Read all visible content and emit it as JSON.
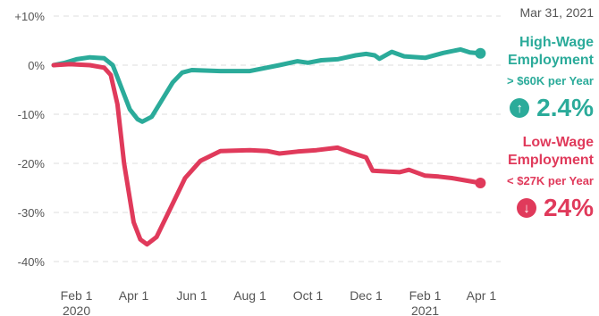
{
  "date_label": "Mar 31, 2021",
  "colors": {
    "high": "#2bab9a",
    "low": "#e03a5b",
    "grid": "#dddddd",
    "tick": "#555555"
  },
  "high_wage": {
    "title_line1": "High-Wage",
    "title_line2": "Employment",
    "subtitle": "> $60K per Year",
    "change": "2.4%",
    "icon": "arrow-up-icon"
  },
  "low_wage": {
    "title_line1": "Low-Wage",
    "title_line2": "Employment",
    "subtitle": "< $27K per Year",
    "change": "24%",
    "icon": "arrow-down-icon"
  },
  "chart_data": {
    "type": "line",
    "title": "",
    "xlabel": "",
    "ylabel": "",
    "ylim": [
      -40,
      10
    ],
    "yticks": [
      10,
      0,
      -10,
      -20,
      -30,
      -40
    ],
    "ytick_labels": [
      "+10%",
      "0%",
      "-10%",
      "-20%",
      "-30%",
      "-40%"
    ],
    "x_range": [
      "2020-01-08",
      "2021-04-10"
    ],
    "xticks": [
      {
        "date": "2020-02-01",
        "label": "Feb 1",
        "sub": "2020"
      },
      {
        "date": "2020-04-01",
        "label": "Apr 1",
        "sub": ""
      },
      {
        "date": "2020-06-01",
        "label": "Jun 1",
        "sub": ""
      },
      {
        "date": "2020-08-01",
        "label": "Aug 1",
        "sub": ""
      },
      {
        "date": "2020-10-01",
        "label": "Oct 1",
        "sub": ""
      },
      {
        "date": "2020-12-01",
        "label": "Dec 1",
        "sub": ""
      },
      {
        "date": "2021-02-01",
        "label": "Feb 1",
        "sub": "2021"
      },
      {
        "date": "2021-04-01",
        "label": "Apr 1",
        "sub": ""
      }
    ],
    "grid": true,
    "series": [
      {
        "key": "high",
        "points": [
          [
            "2020-01-08",
            0
          ],
          [
            "2020-01-20",
            0.5
          ],
          [
            "2020-02-01",
            1.2
          ],
          [
            "2020-02-15",
            1.6
          ],
          [
            "2020-03-01",
            1.4
          ],
          [
            "2020-03-10",
            0
          ],
          [
            "2020-03-20",
            -5
          ],
          [
            "2020-03-28",
            -9
          ],
          [
            "2020-04-05",
            -11
          ],
          [
            "2020-04-10",
            -11.5
          ],
          [
            "2020-04-20",
            -10.5
          ],
          [
            "2020-05-01",
            -7
          ],
          [
            "2020-05-12",
            -3.5
          ],
          [
            "2020-05-22",
            -1.5
          ],
          [
            "2020-06-01",
            -1
          ],
          [
            "2020-07-01",
            -1.2
          ],
          [
            "2020-08-01",
            -1.2
          ],
          [
            "2020-09-01",
            0
          ],
          [
            "2020-09-20",
            0.8
          ],
          [
            "2020-10-01",
            0.5
          ],
          [
            "2020-10-15",
            1
          ],
          [
            "2020-11-01",
            1.2
          ],
          [
            "2020-11-20",
            2
          ],
          [
            "2020-12-01",
            2.3
          ],
          [
            "2020-12-10",
            2
          ],
          [
            "2020-12-15",
            1.3
          ],
          [
            "2020-12-28",
            2.7
          ],
          [
            "2021-01-10",
            1.8
          ],
          [
            "2021-02-01",
            1.5
          ],
          [
            "2021-02-20",
            2.5
          ],
          [
            "2021-03-10",
            3.2
          ],
          [
            "2021-03-20",
            2.6
          ],
          [
            "2021-03-31",
            2.4
          ]
        ]
      },
      {
        "key": "low",
        "points": [
          [
            "2020-01-08",
            0
          ],
          [
            "2020-01-25",
            0.2
          ],
          [
            "2020-02-15",
            0
          ],
          [
            "2020-03-01",
            -0.5
          ],
          [
            "2020-03-08",
            -2
          ],
          [
            "2020-03-15",
            -8
          ],
          [
            "2020-03-22",
            -20
          ],
          [
            "2020-04-01",
            -32
          ],
          [
            "2020-04-08",
            -35.5
          ],
          [
            "2020-04-15",
            -36.5
          ],
          [
            "2020-04-25",
            -35
          ],
          [
            "2020-05-10",
            -29
          ],
          [
            "2020-05-25",
            -23
          ],
          [
            "2020-06-10",
            -19.5
          ],
          [
            "2020-07-01",
            -17.5
          ],
          [
            "2020-08-01",
            -17.3
          ],
          [
            "2020-08-20",
            -17.5
          ],
          [
            "2020-09-01",
            -18
          ],
          [
            "2020-09-20",
            -17.6
          ],
          [
            "2020-10-10",
            -17.3
          ],
          [
            "2020-11-01",
            -16.8
          ],
          [
            "2020-11-15",
            -17.8
          ],
          [
            "2020-12-01",
            -18.8
          ],
          [
            "2020-12-08",
            -21.5
          ],
          [
            "2021-01-05",
            -21.8
          ],
          [
            "2021-01-15",
            -21.3
          ],
          [
            "2021-02-01",
            -22.5
          ],
          [
            "2021-02-15",
            -22.7
          ],
          [
            "2021-03-01",
            -23
          ],
          [
            "2021-03-31",
            -24
          ]
        ]
      }
    ]
  }
}
